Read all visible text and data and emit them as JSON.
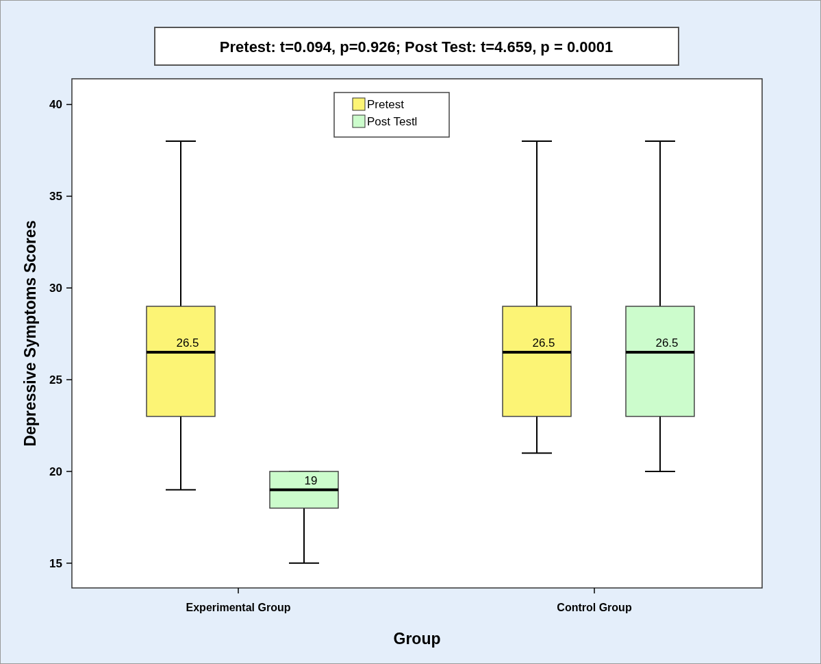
{
  "chart_data": {
    "type": "box",
    "title": "Pretest: t=0.094, p=0.926; Post Test: t=4.659, p = 0.0001",
    "xlabel": "Group",
    "ylabel": "Depressive Symptoms Scores",
    "categories": [
      "Experimental Group",
      "Control Group"
    ],
    "ylim": [
      13.65,
      41.4
    ],
    "yticks": [
      15,
      20,
      25,
      30,
      35,
      40
    ],
    "grid": false,
    "legend": "top",
    "series": [
      {
        "name": "Pretest",
        "color": "#fcf475",
        "value_labels": [
          "26.5",
          "26.5"
        ],
        "boxes": [
          {
            "low": 19,
            "q1": 23,
            "median": 26.5,
            "q3": 29,
            "high": 38
          },
          {
            "low": 21,
            "q1": 23,
            "median": 26.5,
            "q3": 29,
            "high": 38
          }
        ]
      },
      {
        "name": "Post Testl",
        "color": "#ccfccc",
        "value_labels": [
          "19",
          "26.5"
        ],
        "boxes": [
          {
            "low": 15,
            "q1": 18,
            "median": 19,
            "q3": 20,
            "high": 20
          },
          {
            "low": 20,
            "q1": 23,
            "median": 26.5,
            "q3": 29,
            "high": 38
          }
        ]
      }
    ]
  }
}
